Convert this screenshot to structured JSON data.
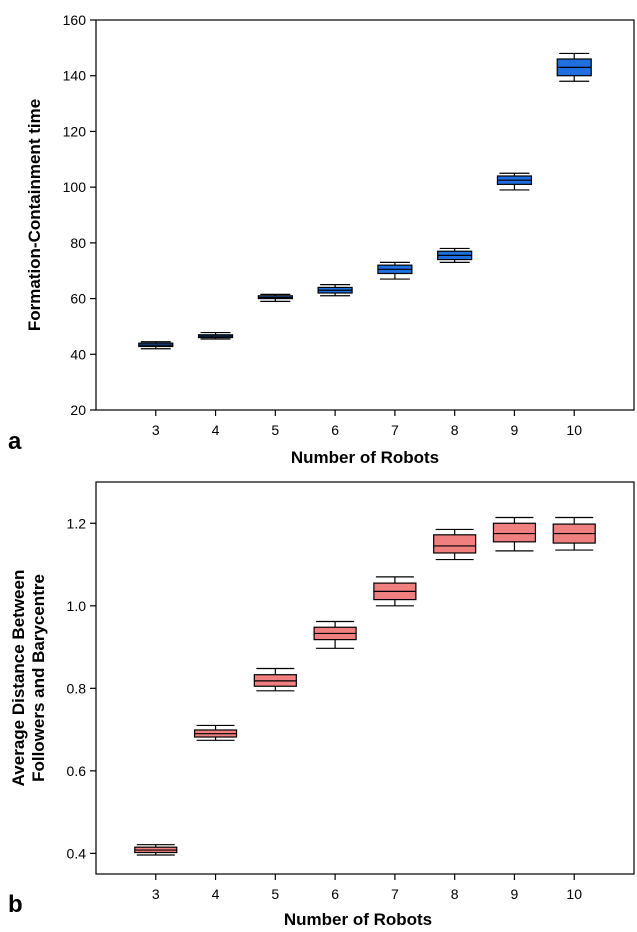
{
  "chart_data": [
    {
      "type": "box",
      "panel_label": "a",
      "xlabel": "Number of Robots",
      "ylabel": "Formation-Containment time",
      "categories": [
        "3",
        "4",
        "5",
        "6",
        "7",
        "8",
        "9",
        "10"
      ],
      "ylim": [
        20,
        160
      ],
      "yticks": [
        20,
        40,
        60,
        80,
        100,
        120,
        140,
        160
      ],
      "box_color": "#1f6fe0",
      "boxes": [
        {
          "min": 42,
          "q1": 42.8,
          "median": 43.3,
          "q3": 44,
          "max": 44.5
        },
        {
          "min": 45.5,
          "q1": 46,
          "median": 46.5,
          "q3": 47,
          "max": 47.8
        },
        {
          "min": 59,
          "q1": 60,
          "median": 60.4,
          "q3": 61,
          "max": 61.5
        },
        {
          "min": 61,
          "q1": 62,
          "median": 63,
          "q3": 64,
          "max": 65
        },
        {
          "min": 67,
          "q1": 69,
          "median": 70.5,
          "q3": 72,
          "max": 73
        },
        {
          "min": 73,
          "q1": 74,
          "median": 75.5,
          "q3": 77,
          "max": 78
        },
        {
          "min": 99,
          "q1": 101,
          "median": 102.5,
          "q3": 104,
          "max": 105
        },
        {
          "min": 138,
          "q1": 140,
          "median": 143,
          "q3": 146,
          "max": 148
        }
      ]
    },
    {
      "type": "box",
      "panel_label": "b",
      "xlabel": "Number of Robots",
      "ylabel_lines": [
        "Average Distance Between",
        "Followers and Barycentre"
      ],
      "categories": [
        "3",
        "4",
        "5",
        "6",
        "7",
        "8",
        "9",
        "10"
      ],
      "ylim": [
        0.35,
        1.3
      ],
      "yticks": [
        "0.4",
        "0.6",
        "0.8",
        "1.0",
        "1.2"
      ],
      "box_color": "#f08080",
      "boxes": [
        {
          "min": 0.396,
          "q1": 0.402,
          "median": 0.408,
          "q3": 0.415,
          "max": 0.421
        },
        {
          "min": 0.674,
          "q1": 0.682,
          "median": 0.69,
          "q3": 0.699,
          "max": 0.71
        },
        {
          "min": 0.794,
          "q1": 0.805,
          "median": 0.818,
          "q3": 0.833,
          "max": 0.848
        },
        {
          "min": 0.897,
          "q1": 0.918,
          "median": 0.933,
          "q3": 0.948,
          "max": 0.962
        },
        {
          "min": 1.0,
          "q1": 1.015,
          "median": 1.035,
          "q3": 1.055,
          "max": 1.07
        },
        {
          "min": 1.112,
          "q1": 1.128,
          "median": 1.145,
          "q3": 1.172,
          "max": 1.185
        },
        {
          "min": 1.133,
          "q1": 1.155,
          "median": 1.175,
          "q3": 1.2,
          "max": 1.214
        },
        {
          "min": 1.135,
          "q1": 1.152,
          "median": 1.175,
          "q3": 1.198,
          "max": 1.214
        }
      ]
    }
  ]
}
